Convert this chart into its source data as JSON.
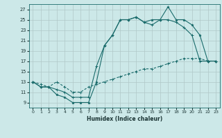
{
  "xlabel": "Humidex (Indice chaleur)",
  "bg_color": "#cce8e8",
  "grid_color": "#b0c8c8",
  "line_color": "#1a6b6b",
  "xlim": [
    -0.5,
    23.5
  ],
  "ylim": [
    8,
    28
  ],
  "xticks": [
    0,
    1,
    2,
    3,
    4,
    5,
    6,
    7,
    8,
    9,
    10,
    11,
    12,
    13,
    14,
    15,
    16,
    17,
    18,
    19,
    20,
    21,
    22,
    23
  ],
  "yticks": [
    9,
    11,
    13,
    15,
    17,
    19,
    21,
    23,
    25,
    27
  ],
  "line1_x": [
    0,
    1,
    2,
    3,
    4,
    5,
    6,
    7,
    8,
    9,
    10,
    11,
    12,
    13,
    14,
    15,
    16,
    17,
    18,
    19,
    20,
    21,
    22,
    23
  ],
  "line1_y": [
    13,
    12,
    12,
    10.5,
    10,
    9,
    9,
    9,
    13,
    20,
    22,
    25,
    25,
    25.5,
    24.5,
    25,
    25,
    27.5,
    25,
    25,
    24,
    22,
    17,
    17
  ],
  "line2_x": [
    0,
    1,
    2,
    3,
    4,
    5,
    6,
    7,
    8,
    9,
    10,
    11,
    12,
    13,
    14,
    15,
    16,
    17,
    18,
    19,
    20,
    21,
    22,
    23
  ],
  "line2_y": [
    13,
    12,
    12,
    11.5,
    11,
    10,
    10,
    10,
    16,
    20,
    22,
    25,
    25,
    25.5,
    24.5,
    24,
    25,
    25,
    24.5,
    23.5,
    22,
    17,
    17,
    17
  ],
  "line3_x": [
    0,
    1,
    2,
    3,
    4,
    5,
    6,
    7,
    8,
    9,
    10,
    11,
    12,
    13,
    14,
    15,
    16,
    17,
    18,
    19,
    20,
    21,
    22,
    23
  ],
  "line3_y": [
    13,
    12.5,
    12,
    13,
    12,
    11,
    11,
    12,
    12.5,
    13,
    13.5,
    14,
    14.5,
    15,
    15.5,
    15.5,
    16,
    16.5,
    17,
    17.5,
    17.5,
    17.5,
    17,
    17
  ]
}
